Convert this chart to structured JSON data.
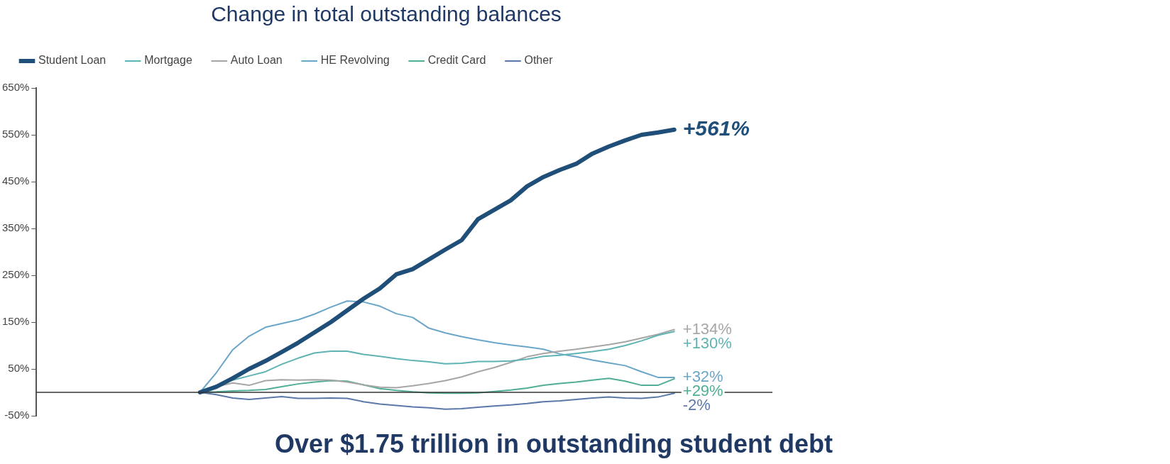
{
  "chart_data": {
    "type": "line",
    "title": "Change in total outstanding balances",
    "categories": [
      null,
      null,
      null,
      null,
      null,
      null,
      null,
      null,
      null,
      null,
      null,
      null,
      null,
      null,
      null,
      null,
      null,
      null,
      null,
      null,
      null,
      null,
      null,
      null,
      null,
      null,
      null,
      null,
      null,
      null,
      null,
      null,
      null,
      null,
      null,
      null,
      null,
      null,
      null,
      null,
      null,
      null,
      null,
      null,
      null,
      null
    ],
    "series": [
      {
        "name": "Student Loan",
        "color": "#1f4e79",
        "values": [
          null,
          null,
          null,
          null,
          null,
          null,
          null,
          null,
          null,
          null,
          0,
          12,
          30,
          50,
          67,
          86,
          106,
          128,
          150,
          175,
          200,
          222,
          252,
          263,
          284,
          305,
          325,
          370,
          390,
          410,
          440,
          460,
          475,
          488,
          510,
          525,
          538,
          550,
          555,
          561,
          null,
          null,
          null,
          null,
          null,
          null
        ],
        "value_labels": [
          null,
          null,
          null,
          null,
          null,
          null,
          null,
          null,
          null,
          null,
          null,
          null,
          null,
          null,
          null,
          null,
          null,
          null,
          null,
          null,
          null,
          null,
          null,
          null,
          null,
          null,
          null,
          null,
          null,
          null,
          null,
          null,
          null,
          null,
          null,
          null,
          null,
          null,
          null,
          "+561%",
          null,
          null,
          null,
          null,
          null,
          null
        ]
      },
      {
        "name": "Mortgage",
        "color": "#5fb3b3",
        "values": [
          null,
          null,
          null,
          null,
          null,
          null,
          null,
          null,
          null,
          null,
          0,
          15,
          26,
          35,
          44,
          60,
          73,
          84,
          88,
          88,
          81,
          77,
          72,
          68,
          65,
          61,
          62,
          66,
          66,
          67,
          71,
          77,
          79,
          83,
          87,
          92,
          100,
          110,
          122,
          130,
          null,
          null,
          null,
          null,
          null,
          null
        ],
        "value_labels": [
          null,
          null,
          null,
          null,
          null,
          null,
          null,
          null,
          null,
          null,
          null,
          null,
          null,
          null,
          null,
          null,
          null,
          null,
          null,
          null,
          null,
          null,
          null,
          null,
          null,
          null,
          null,
          null,
          null,
          null,
          null,
          null,
          null,
          null,
          null,
          null,
          null,
          null,
          null,
          "+130%",
          null,
          null,
          null,
          null,
          null,
          null
        ]
      },
      {
        "name": "Auto Loan",
        "color": "#a6a6a6",
        "values": [
          null,
          null,
          null,
          null,
          null,
          null,
          null,
          null,
          null,
          null,
          0,
          12,
          20,
          15,
          25,
          27,
          26,
          27,
          26,
          22,
          16,
          11,
          10,
          14,
          19,
          25,
          33,
          44,
          53,
          64,
          76,
          83,
          88,
          92,
          97,
          102,
          108,
          116,
          124,
          134,
          null,
          null,
          null,
          null,
          null,
          null
        ],
        "value_labels": [
          null,
          null,
          null,
          null,
          null,
          null,
          null,
          null,
          null,
          null,
          null,
          null,
          null,
          null,
          null,
          null,
          null,
          null,
          null,
          null,
          null,
          null,
          null,
          null,
          null,
          null,
          null,
          null,
          null,
          null,
          null,
          null,
          null,
          null,
          null,
          null,
          null,
          null,
          null,
          "+134%",
          null,
          null,
          null,
          null,
          null,
          null
        ]
      },
      {
        "name": "HE Revolving",
        "color": "#6aa6c8",
        "values": [
          null,
          null,
          null,
          null,
          null,
          null,
          null,
          null,
          null,
          null,
          0,
          42,
          91,
          120,
          139,
          147,
          155,
          167,
          182,
          195,
          193,
          184,
          168,
          160,
          137,
          127,
          119,
          112,
          106,
          101,
          97,
          92,
          82,
          76,
          69,
          63,
          57,
          44,
          32,
          32,
          null,
          null,
          null,
          null,
          null,
          null
        ],
        "value_labels": [
          null,
          null,
          null,
          null,
          null,
          null,
          null,
          null,
          null,
          null,
          null,
          null,
          null,
          null,
          null,
          null,
          null,
          null,
          null,
          null,
          null,
          null,
          null,
          null,
          null,
          null,
          null,
          null,
          null,
          null,
          null,
          null,
          null,
          null,
          null,
          null,
          null,
          null,
          null,
          "+32%",
          null,
          null,
          null,
          null,
          null,
          null
        ]
      },
      {
        "name": "Credit Card",
        "color": "#4fae95",
        "values": [
          null,
          null,
          null,
          null,
          null,
          null,
          null,
          null,
          null,
          null,
          0,
          1,
          3,
          4,
          6,
          12,
          18,
          22,
          25,
          24,
          16,
          8,
          4,
          1,
          -1,
          -2,
          -2,
          -1,
          2,
          5,
          9,
          15,
          19,
          22,
          26,
          30,
          24,
          15,
          15,
          29,
          null,
          null,
          null,
          null,
          null,
          null
        ],
        "value_labels": [
          null,
          null,
          null,
          null,
          null,
          null,
          null,
          null,
          null,
          null,
          null,
          null,
          null,
          null,
          null,
          null,
          null,
          null,
          null,
          null,
          null,
          null,
          null,
          null,
          null,
          null,
          null,
          null,
          null,
          null,
          null,
          null,
          null,
          null,
          null,
          null,
          null,
          null,
          null,
          "+29%",
          null,
          null,
          null,
          null,
          null,
          null
        ]
      },
      {
        "name": "Other",
        "color": "#5b78a8",
        "values": [
          null,
          null,
          null,
          null,
          null,
          null,
          null,
          null,
          null,
          null,
          0,
          -5,
          -12,
          -15,
          -12,
          -9,
          -13,
          -13,
          -12,
          -13,
          -20,
          -25,
          -28,
          -31,
          -33,
          -36,
          -35,
          -32,
          -29,
          -27,
          -24,
          -20,
          -18,
          -15,
          -12,
          -10,
          -12,
          -13,
          -10,
          -2,
          null,
          null,
          null,
          null,
          null,
          null
        ],
        "value_labels": [
          null,
          null,
          null,
          null,
          null,
          null,
          null,
          null,
          null,
          null,
          null,
          null,
          null,
          null,
          null,
          null,
          null,
          null,
          null,
          null,
          null,
          null,
          null,
          null,
          null,
          null,
          null,
          null,
          null,
          null,
          null,
          null,
          null,
          null,
          null,
          null,
          null,
          null,
          null,
          "-2%",
          null,
          null,
          null,
          null,
          null,
          null
        ]
      }
    ],
    "ylim": [
      -50,
      650
    ],
    "yticks": [
      {
        "value": -50,
        "label": "-50%"
      },
      {
        "value": 50,
        "label": "50%"
      },
      {
        "value": 150,
        "label": "150%"
      },
      {
        "value": 250,
        "label": "250%"
      },
      {
        "value": 350,
        "label": "350%"
      },
      {
        "value": 450,
        "label": "450%"
      },
      {
        "value": 550,
        "label": "550%"
      },
      {
        "value": 650,
        "label": "650%"
      }
    ],
    "ref_lines": [
      {
        "axis": "y",
        "value": 0,
        "color": "#333333"
      }
    ],
    "tick_labels": "y",
    "grid": false,
    "legend": "top left",
    "marker": "none",
    "line_style": "solid",
    "annotations": [
      "Over $1.75 trillion in outstanding student debt"
    ]
  }
}
